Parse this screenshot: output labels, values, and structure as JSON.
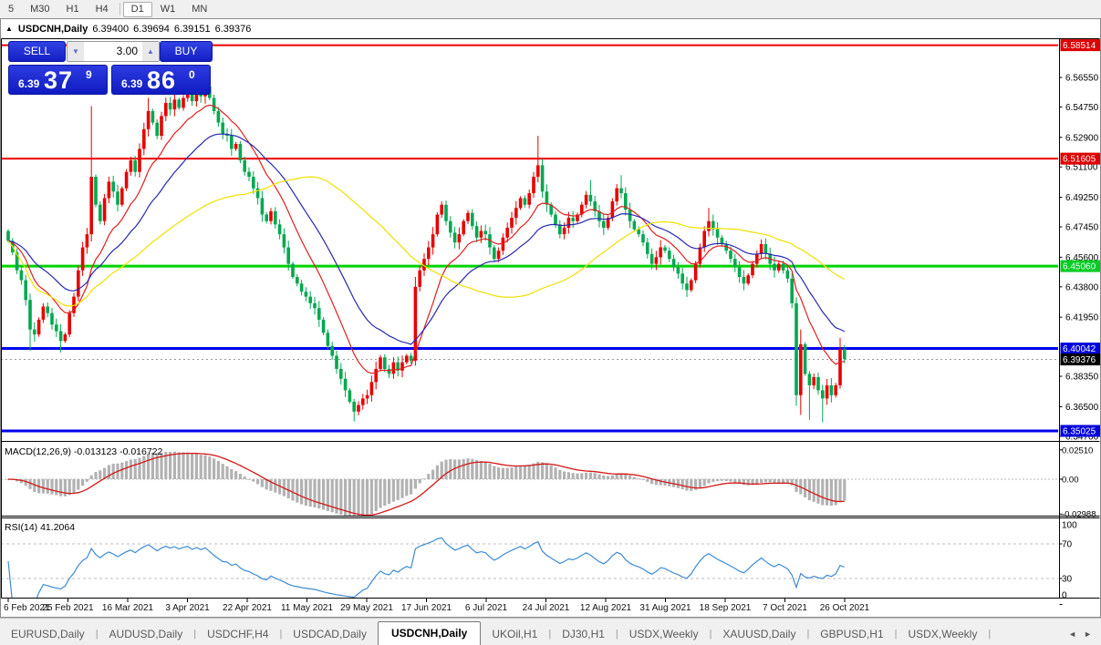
{
  "toolbar": {
    "timeframes": [
      "5",
      "M30",
      "H1",
      "H4",
      "D1",
      "W1",
      "MN"
    ],
    "active_timeframe": "D1"
  },
  "chart": {
    "collapse_icon": "▲",
    "title": {
      "symbol": "USDCNH,Daily",
      "open": "6.39400",
      "high": "6.39694",
      "low": "6.39151",
      "close": "6.39376"
    }
  },
  "trade": {
    "sell_label": "SELL",
    "buy_label": "BUY",
    "volume": "3.00",
    "volume_down_icon": "▼",
    "volume_up_icon": "▲",
    "sell": {
      "prefix": "6.39",
      "big": "37",
      "sup": "9"
    },
    "buy": {
      "prefix": "6.39",
      "big": "86",
      "sup": "0"
    }
  },
  "price_axis": {
    "ticks": [
      {
        "label": "6.56550",
        "price": 6.5655
      },
      {
        "label": "6.54750",
        "price": 6.5475
      },
      {
        "label": "6.52900",
        "price": 6.529
      },
      {
        "label": "6.51100",
        "price": 6.511
      },
      {
        "label": "6.49250",
        "price": 6.4925
      },
      {
        "label": "6.47450",
        "price": 6.4745
      },
      {
        "label": "6.45600",
        "price": 6.456
      },
      {
        "label": "6.43800",
        "price": 6.438
      },
      {
        "label": "6.41950",
        "price": 6.4195
      },
      {
        "label": "6.38350",
        "price": 6.3835
      },
      {
        "label": "6.36500",
        "price": 6.365
      },
      {
        "label": "6.34700",
        "price": 6.347
      }
    ],
    "line_labels": [
      {
        "label": "6.58514",
        "price": 6.58514,
        "bg": "#dd0000",
        "fg": "#ffffff"
      },
      {
        "label": "6.51605",
        "price": 6.51605,
        "bg": "#dd0000",
        "fg": "#ffffff"
      },
      {
        "label": "6.45060",
        "price": 6.4506,
        "bg": "#00cc22",
        "fg": "#ffffff"
      },
      {
        "label": "6.40042",
        "price": 6.40042,
        "bg": "#0000dd",
        "fg": "#ffffff"
      },
      {
        "label": "6.39376",
        "price": 6.39376,
        "bg": "#000000",
        "fg": "#ffffff"
      },
      {
        "label": "6.35025",
        "price": 6.35025,
        "bg": "#0000dd",
        "fg": "#ffffff"
      }
    ]
  },
  "chart_data": {
    "type": "candlestick",
    "symbol": "USDCNH",
    "period": "Daily",
    "hlines": [
      {
        "price": 6.58514,
        "color": "#ee0000",
        "width": 2
      },
      {
        "price": 6.51605,
        "color": "#ee0000",
        "width": 2
      },
      {
        "price": 6.4506,
        "color": "#00d400",
        "width": 3
      },
      {
        "price": 6.40042,
        "color": "#0000ee",
        "width": 3
      },
      {
        "price": 6.35025,
        "color": "#0000ee",
        "width": 3
      }
    ],
    "last_price": 6.39376,
    "bull_color": "#e80000",
    "bear_color": "#00a850",
    "open_first": 6.472,
    "closes": [
      6.466,
      6.459,
      6.448,
      6.442,
      6.43,
      6.412,
      6.409,
      6.418,
      6.426,
      6.422,
      6.415,
      6.411,
      6.405,
      6.409,
      6.422,
      6.432,
      6.448,
      6.462,
      6.47,
      6.505,
      6.488,
      6.478,
      6.492,
      6.502,
      6.496,
      6.488,
      6.498,
      6.508,
      6.515,
      6.508,
      6.522,
      6.534,
      6.545,
      6.538,
      6.53,
      6.542,
      6.55,
      6.546,
      6.552,
      6.547,
      6.553,
      6.557,
      6.551,
      6.558,
      6.554,
      6.56,
      6.553,
      6.545,
      6.538,
      6.531,
      6.53,
      6.522,
      6.525,
      6.515,
      6.508,
      6.505,
      6.498,
      6.492,
      6.482,
      6.478,
      6.484,
      6.476,
      6.47,
      6.462,
      6.452,
      6.444,
      6.44,
      6.435,
      6.432,
      6.428,
      6.425,
      6.418,
      6.41,
      6.402,
      6.396,
      6.388,
      6.382,
      6.375,
      6.368,
      6.362,
      6.366,
      6.37,
      6.372,
      6.38,
      6.388,
      6.395,
      6.388,
      6.385,
      6.392,
      6.387,
      6.392,
      6.396,
      6.393,
      6.438,
      6.448,
      6.455,
      6.462,
      6.47,
      6.482,
      6.488,
      6.478,
      6.471,
      6.465,
      6.47,
      6.478,
      6.483,
      6.475,
      6.468,
      6.472,
      6.47,
      6.462,
      6.455,
      6.46,
      6.468,
      6.474,
      6.48,
      6.486,
      6.492,
      6.488,
      6.495,
      6.505,
      6.512,
      6.496,
      6.488,
      6.482,
      6.476,
      6.47,
      6.474,
      6.48,
      6.478,
      6.482,
      6.488,
      6.494,
      6.49,
      6.484,
      6.478,
      6.474,
      6.48,
      6.49,
      6.498,
      6.495,
      6.485,
      6.478,
      6.473,
      6.47,
      6.465,
      6.458,
      6.452,
      6.456,
      6.462,
      6.46,
      6.455,
      6.45,
      6.446,
      6.44,
      6.436,
      6.442,
      6.452,
      6.462,
      6.472,
      6.478,
      6.473,
      6.468,
      6.464,
      6.46,
      6.455,
      6.45,
      6.444,
      6.44,
      6.445,
      6.452,
      6.458,
      6.464,
      6.458,
      6.452,
      6.448,
      6.452,
      6.448,
      6.443,
      6.428,
      6.372,
      6.403,
      6.385,
      6.378,
      6.383,
      6.375,
      6.37,
      6.378,
      6.372,
      6.378,
      6.4,
      6.394
    ],
    "wick_overrides": {
      "5": [
        null,
        6.399
      ],
      "12": [
        null,
        6.398
      ],
      "19": [
        6.548,
        null
      ],
      "32": [
        6.553,
        null
      ],
      "38": [
        6.559,
        null
      ],
      "41": [
        6.561,
        null
      ],
      "45": [
        6.564,
        null
      ],
      "79": [
        null,
        6.356
      ],
      "93": [
        6.444,
        6.39
      ],
      "121": [
        6.53,
        null
      ],
      "133": [
        6.503,
        null
      ],
      "140": [
        6.506,
        null
      ],
      "160": [
        6.486,
        null
      ],
      "180": [
        null,
        6.3655
      ],
      "181": [
        6.412,
        6.36
      ],
      "183": [
        null,
        6.357
      ],
      "186": [
        null,
        6.3555
      ],
      "190": [
        6.407,
        null
      ]
    },
    "moving_averages": [
      {
        "type": "ema",
        "period": 12,
        "color": "#e02020"
      },
      {
        "type": "ema",
        "period": 26,
        "color": "#2828b0"
      },
      {
        "type": "sma",
        "period": 55,
        "color": "#f0e000"
      }
    ]
  },
  "indicators": {
    "macd": {
      "label": "MACD(12,26,9) -0.013123 -0.016722",
      "value_main": -0.013123,
      "value_signal": -0.016722,
      "ticks": [
        {
          "label": "0.02510",
          "value": 0.0251
        },
        {
          "label": "0.00",
          "value": 0.0
        },
        {
          "label": "-0.02988",
          "value": -0.02988
        }
      ],
      "histogram_color": "#b2b2b2",
      "signal_color": "#d41818",
      "fast": 12,
      "slow": 26,
      "signal": 9
    },
    "rsi": {
      "label": "RSI(14) 41.2064",
      "value": 41.2064,
      "period": 14,
      "ticks": [
        {
          "label": "100",
          "value": 100
        },
        {
          "label": "70",
          "value": 70
        },
        {
          "label": "30",
          "value": 30
        },
        {
          "label": "0",
          "value": 0
        }
      ],
      "levels": [
        70,
        30
      ],
      "line_color": "#3d8bd4"
    }
  },
  "date_axis": {
    "labels": [
      "6 Feb 2021",
      "25 Feb 2021",
      "16 Mar 2021",
      "3 Apr 2021",
      "22 Apr 2021",
      "11 May 2021",
      "29 May 2021",
      "17 Jun 2021",
      "6 Jul 2021",
      "24 Jul 2021",
      "12 Aug 2021",
      "31 Aug 2021",
      "18 Sep 2021",
      "7 Oct 2021",
      "26 Oct 2021"
    ]
  },
  "tabs": {
    "items": [
      "EURUSD,Daily",
      "AUDUSD,Daily",
      "USDCHF,H4",
      "USDCAD,Daily",
      "USDCNH,Daily",
      "UKOil,H1",
      "DJ30,H1",
      "USDX,Weekly",
      "XAUUSD,Daily",
      "GBPUSD,H1",
      "USDX,Weekly"
    ],
    "active_index": 4,
    "scroll_left_icon": "◄",
    "scroll_right_icon": "►"
  }
}
